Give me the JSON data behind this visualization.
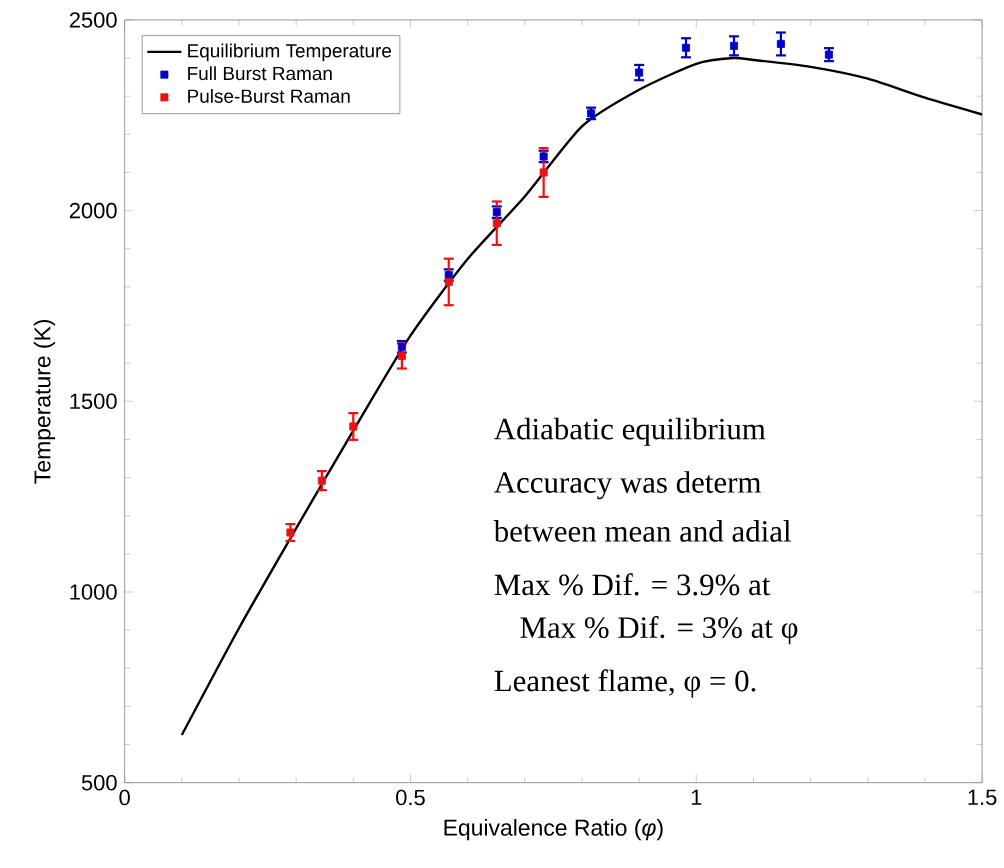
{
  "chart_data": {
    "type": "line",
    "xlabel": "Equivalence Ratio (*φ*)",
    "ylabel": "Temperature (K)",
    "xlim": [
      0,
      1.5
    ],
    "ylim": [
      500,
      2500
    ],
    "xticks": [
      0,
      0.5,
      1,
      1.5
    ],
    "yticks": [
      500,
      1000,
      1500,
      2000,
      2500
    ],
    "grid": false,
    "legend": "top left",
    "series": [
      {
        "name": "Equilibrium Temperature",
        "color": "#000000",
        "marker": "none",
        "line_style": "solid",
        "x": [
          0.1,
          0.2,
          0.3,
          0.4,
          0.5,
          0.6,
          0.7,
          0.8,
          0.9,
          1.0,
          1.065,
          1.1,
          1.2,
          1.3,
          1.4,
          1.5
        ],
        "values": [
          625,
          905,
          1167,
          1423,
          1672,
          1873,
          2037,
          2221,
          2317,
          2385,
          2400,
          2395,
          2377,
          2346,
          2296,
          2252
        ]
      },
      {
        "name": "Full Burst Raman",
        "type": "scatter",
        "color": "#0000cc",
        "marker": "square",
        "x": [
          0.485,
          0.567,
          0.651,
          0.733,
          0.816,
          0.9,
          0.982,
          1.066,
          1.148,
          1.232
        ],
        "values": [
          1643,
          1831,
          1996,
          2142,
          2255,
          2362,
          2427,
          2432,
          2437,
          2409
        ],
        "errors": [
          15,
          15,
          15,
          15,
          15,
          20,
          25,
          25,
          30,
          17
        ]
      },
      {
        "name": "Pulse-Burst Raman",
        "type": "scatter",
        "color": "#ee1111",
        "marker": "square",
        "x": [
          0.29,
          0.345,
          0.4,
          0.485,
          0.567,
          0.651,
          0.733
        ],
        "values": [
          1156,
          1292,
          1434,
          1619,
          1813,
          1967,
          2100
        ],
        "errors": [
          22,
          25,
          35,
          33,
          61,
          57,
          64
        ]
      }
    ],
    "annotations": [
      "Adiabatic equilibrium",
      "Accuracy was determ",
      "between mean and adial",
      "Max % Dif. = 3.9% at",
      "Max % Dif. = 3% at φ",
      "Leanest flame, φ = 0."
    ]
  }
}
